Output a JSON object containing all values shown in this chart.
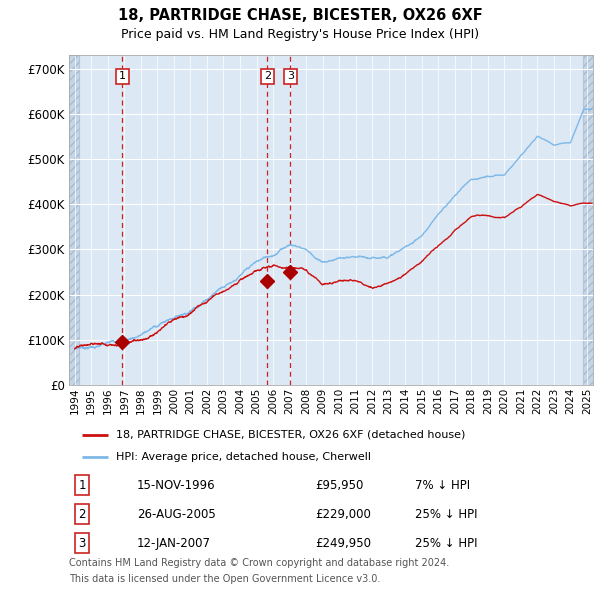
{
  "title": "18, PARTRIDGE CHASE, BICESTER, OX26 6XF",
  "subtitle": "Price paid vs. HM Land Registry's House Price Index (HPI)",
  "ylim": [
    0,
    730000
  ],
  "yticks": [
    0,
    100000,
    200000,
    300000,
    400000,
    500000,
    600000,
    700000
  ],
  "ytick_labels": [
    "£0",
    "£100K",
    "£200K",
    "£300K",
    "£400K",
    "£500K",
    "£600K",
    "£700K"
  ],
  "bg_color": "#dce9f5",
  "grid_color": "#ffffff",
  "hatch_color": "#c5d5e8",
  "hpi_color": "#7db8e8",
  "price_color": "#cc1111",
  "marker_color": "#aa0000",
  "vline_color": "#cc2222",
  "legend_label_red": "18, PARTRIDGE CHASE, BICESTER, OX26 6XF (detached house)",
  "legend_label_blue": "HPI: Average price, detached house, Cherwell",
  "transactions": [
    {
      "id": 1,
      "date_label": "15-NOV-1996",
      "year": 1996.88,
      "price": 95950,
      "pct": "7%",
      "dir": "↓"
    },
    {
      "id": 2,
      "date_label": "26-AUG-2005",
      "year": 2005.65,
      "price": 229000,
      "pct": "25%",
      "dir": "↓"
    },
    {
      "id": 3,
      "date_label": "12-JAN-2007",
      "year": 2007.04,
      "price": 249950,
      "pct": "25%",
      "dir": "↓"
    }
  ],
  "footer_line1": "Contains HM Land Registry data © Crown copyright and database right 2024.",
  "footer_line2": "This data is licensed under the Open Government Licence v3.0.",
  "hpi_key_years": [
    1994,
    1995,
    1996,
    1997,
    1998,
    1999,
    2000,
    2001,
    2002,
    2003,
    2004,
    2005,
    2006,
    2007,
    2008,
    2009,
    2010,
    2011,
    2012,
    2013,
    2014,
    2015,
    2016,
    2017,
    2018,
    2019,
    2020,
    2021,
    2022,
    2023,
    2024,
    2024.8
  ],
  "hpi_key_values": [
    83000,
    88000,
    93000,
    102000,
    118000,
    138000,
    158000,
    178000,
    210000,
    242000,
    268000,
    292000,
    308000,
    335000,
    325000,
    295000,
    305000,
    300000,
    292000,
    300000,
    318000,
    345000,
    388000,
    430000,
    468000,
    472000,
    472000,
    518000,
    558000,
    540000,
    545000,
    620000
  ],
  "price_key_years": [
    1994,
    1995,
    1996,
    1997,
    1998,
    1999,
    2000,
    2001,
    2002,
    2003,
    2004,
    2005,
    2006,
    2007,
    2008,
    2009,
    2010,
    2011,
    2012,
    2013,
    2014,
    2015,
    2016,
    2017,
    2018,
    2019,
    2020,
    2021,
    2022,
    2023,
    2024,
    2024.8
  ],
  "price_key_values": [
    80000,
    84000,
    88000,
    96000,
    110000,
    128000,
    148000,
    163000,
    192000,
    220000,
    248000,
    265000,
    272000,
    265000,
    255000,
    228000,
    240000,
    238000,
    228000,
    238000,
    255000,
    278000,
    310000,
    345000,
    375000,
    375000,
    372000,
    398000,
    425000,
    410000,
    398000,
    405000
  ],
  "noise_seed_hpi": 7,
  "noise_seed_price": 13,
  "noise_scale_hpi": 4500,
  "noise_scale_price": 3500,
  "n_points": 1800,
  "xstart": 1994.0,
  "xend": 2025.3
}
